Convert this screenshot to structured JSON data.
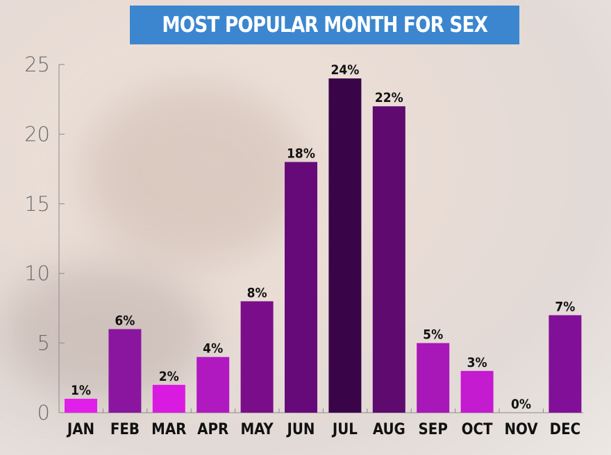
{
  "chart_data": {
    "type": "bar",
    "title": "MOST POPULAR MONTH FOR SEX",
    "xlabel": "",
    "ylabel": "",
    "ylim": [
      0,
      25
    ],
    "yticks": [
      0,
      5,
      10,
      15,
      20,
      25
    ],
    "categories": [
      "JAN",
      "FEB",
      "MAR",
      "APR",
      "MAY",
      "JUN",
      "JUL",
      "AUG",
      "SEP",
      "OCT",
      "NOV",
      "DEC"
    ],
    "values": [
      1,
      6,
      2,
      4,
      8,
      18,
      24,
      22,
      5,
      3,
      0,
      7
    ],
    "data_labels": [
      "1%",
      "6%",
      "2%",
      "4%",
      "8%",
      "18%",
      "24%",
      "22%",
      "5%",
      "3%",
      "0%",
      "7%"
    ],
    "bar_colors": [
      "#e020e8",
      "#8a16a0",
      "#d91ae0",
      "#b019c0",
      "#7a0e8a",
      "#660a7a",
      "#3a0548",
      "#5e0a6e",
      "#a817b8",
      "#c41ad0",
      "#c41ad0",
      "#820f98"
    ],
    "title_background": "#3b86cf",
    "grid": false
  }
}
